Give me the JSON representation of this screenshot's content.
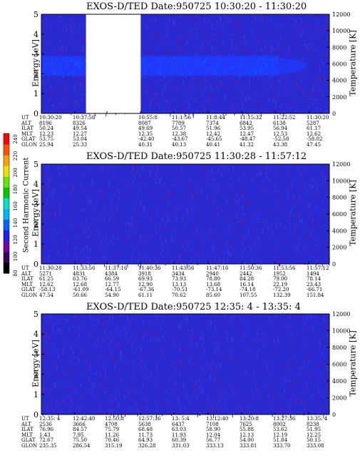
{
  "colorbar": {
    "label": "Second Harmonic Current",
    "ticks": [
      "80",
      "100",
      "120",
      "140",
      "160",
      "180",
      "200",
      "220",
      "240"
    ],
    "colors": [
      "#000000",
      "#3a0060",
      "#7800a0",
      "#1e1ef0",
      "#0064ff",
      "#00b4ff",
      "#00e1c8",
      "#00c800",
      "#64e600",
      "#e6e600",
      "#ffa000",
      "#ff5000",
      "#ff0000"
    ]
  },
  "chart_data": [
    {
      "type": "heatmap",
      "title": "EXOS-D/TED   Date:950725  10:30:20 - 11:30:20",
      "ylabel": "Energy [eV]",
      "ylim": [
        0,
        5
      ],
      "yticks": [
        "0",
        "1",
        "2",
        "3",
        "4",
        "5"
      ],
      "y2label": "Temperature [K]",
      "y2lim": [
        0,
        12000
      ],
      "y2ticks": [
        "0",
        "2000",
        "4000",
        "6000",
        "8000",
        "10000",
        "12000"
      ],
      "band": {
        "energy_low": 1.9,
        "energy_high": 2.9,
        "until_frac": 0.92
      },
      "gaps": [
        {
          "from": 0.155,
          "to": 0.345
        }
      ],
      "orbit_labels": [
        "UT",
        "ALT",
        "ILAT",
        "MLT",
        "GLAT",
        "GLON"
      ],
      "orbit": [
        [
          "10:30:20",
          "8196",
          "50.24",
          "12.23",
          "53.75",
          "25.94"
        ],
        [
          "10:37:56",
          "8326",
          "49.54",
          "12.27",
          "53.04",
          "25.33"
        ],
        [
          "",
          "",
          "",
          "",
          "",
          ""
        ],
        [
          "10:55:8",
          "8087",
          "49.69",
          "12.35",
          "-42.40",
          "40.31"
        ],
        [
          "11:1:56",
          "7789",
          "50.57",
          "12.38",
          "-43.67",
          "40.13"
        ],
        [
          "11:8:44",
          "7374",
          "51.96",
          "12.42",
          "-45.65",
          "40.41"
        ],
        [
          "11:15:32",
          "6842",
          "53.95",
          "12.47",
          "-48.47",
          "41.32"
        ],
        [
          "11:22:52",
          "6138",
          "56.94",
          "12.53",
          "-52.58",
          "43.38"
        ],
        [
          "11:30:20",
          "5287",
          "61.17",
          "12.62",
          "-58.02",
          "47.45"
        ]
      ]
    },
    {
      "type": "heatmap",
      "title": "EXOS-D/TED   Date:950725  11:30:28 - 11:57:12",
      "ylabel": "Energy [eV]",
      "ylim": [
        0,
        5
      ],
      "yticks": [
        "0",
        "1",
        "2",
        "3",
        "4",
        "5"
      ],
      "y2label": "Temperature [K]",
      "y2lim": [
        0,
        12000
      ],
      "y2ticks": [
        "0",
        "2000",
        "4000",
        "6000",
        "8000",
        "10000",
        "12000"
      ],
      "orbit_labels": [
        "UT",
        "ALT",
        "ILAT",
        "MLT",
        "GLAT",
        "GLON"
      ],
      "orbit": [
        [
          "11:30:28",
          "5271",
          "61.25",
          "12.62",
          "-58.13",
          "47.54"
        ],
        [
          "11:33:56",
          "4831",
          "63.76",
          "12.68",
          "-61.09",
          "50.66"
        ],
        [
          "11:37:16",
          "4384",
          "66.59",
          "12.77",
          "-64.15",
          "54.90"
        ],
        [
          "11:40:36",
          "3918",
          "69.93",
          "12.90",
          "-67.36",
          "61.11"
        ],
        [
          "11:43:56",
          "3434",
          "73.93",
          "13.13",
          "-70.51",
          "70.62"
        ],
        [
          "11:47:16",
          "2940",
          "78.80",
          "13.68",
          "-73.14",
          "85.60"
        ],
        [
          "11:50:36",
          "2442",
          "84.28",
          "16.14",
          "-74.18",
          "107.55"
        ],
        [
          "11:53:56",
          "1952",
          "79.00",
          "22.19",
          "-72.20",
          "132.39"
        ],
        [
          "11:57:12",
          "1494",
          "78.14",
          "23.43",
          "-66.71",
          "151.84"
        ]
      ]
    },
    {
      "type": "heatmap",
      "title": "EXOS-D/TED   Date:950725  12:35: 4 - 13:35: 4",
      "ylabel": "Energy [eV]",
      "ylim": [
        0,
        5
      ],
      "yticks": [
        "0",
        "1",
        "2",
        "3",
        "4",
        "5"
      ],
      "y2label": "Temperature [K]",
      "y2lim": [
        0,
        12000
      ],
      "y2ticks": [
        "0",
        "2000",
        "4000",
        "6000",
        "8000",
        "10000",
        "12000"
      ],
      "orbit_labels": [
        "UT",
        "ALT",
        "ILAT",
        "MLT",
        "GLAT",
        "GLON"
      ],
      "orbit": [
        [
          "12:35: 4",
          "2536",
          "76.96",
          "1.43",
          "72.67",
          "235.35"
        ],
        [
          "12:42:40",
          "3666",
          "84.57",
          "7.95",
          "75.50",
          "286.54"
        ],
        [
          "12:50:8",
          "4708",
          "75.79",
          "11.26",
          "70.46",
          "315.19"
        ],
        [
          "12:57:36",
          "5638",
          "68.48",
          "11.73",
          "64.93",
          "326.28"
        ],
        [
          "13: 5:4",
          "6437",
          "63.03",
          "11.93",
          "60.39",
          "331.03"
        ],
        [
          "13:12:40",
          "7108",
          "58.90",
          "12.04",
          "56.77",
          "333.13"
        ],
        [
          "13:20:8",
          "7625",
          "55.88",
          "12.13",
          "54.00",
          "333.81"
        ],
        [
          "13:27:36",
          "8002",
          "53.62",
          "12.19",
          "51.84",
          "333.70"
        ],
        [
          "13:35: 4",
          "8238",
          "51.95",
          "12.25",
          "50.15",
          "333.08"
        ]
      ]
    }
  ]
}
